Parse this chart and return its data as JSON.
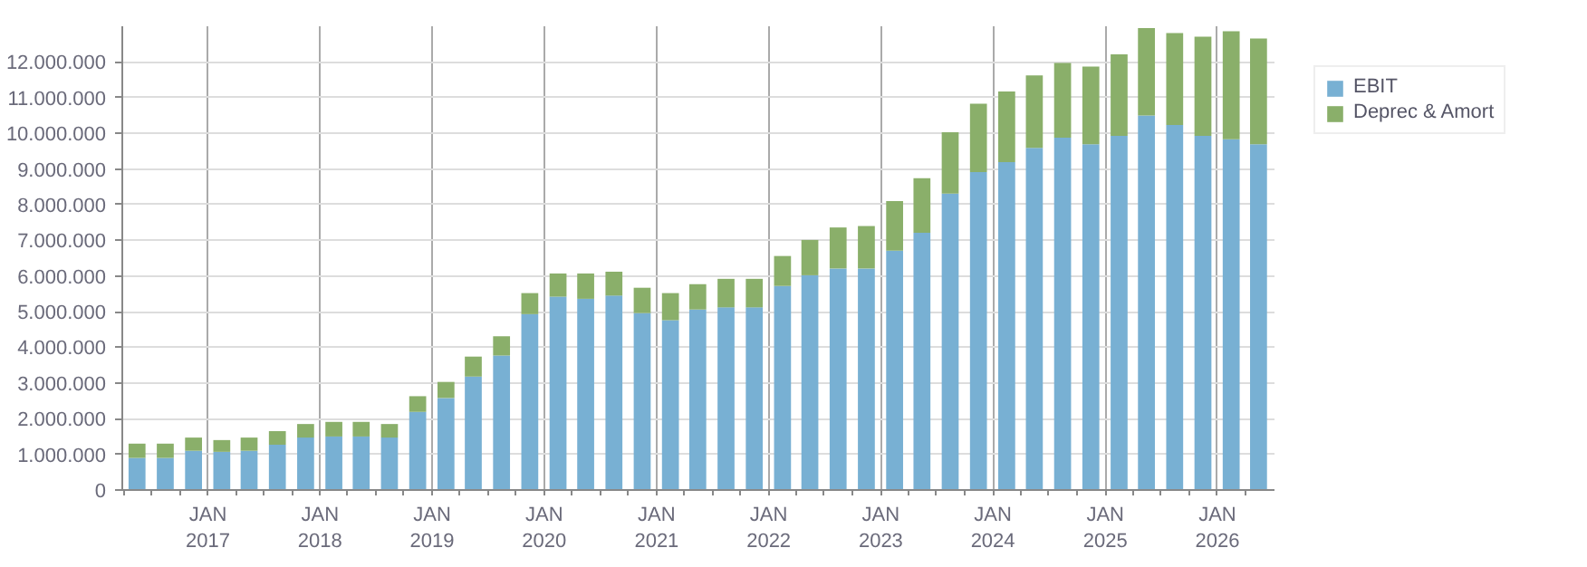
{
  "chart_data": {
    "type": "bar",
    "stacked": true,
    "x": [
      "2016-05-15",
      "2016-08-15",
      "2016-11-15",
      "2017-02-15",
      "2017-05-15",
      "2017-08-15",
      "2017-11-15",
      "2018-02-15",
      "2018-05-15",
      "2018-08-15",
      "2018-11-15",
      "2019-02-15",
      "2019-05-15",
      "2019-08-15",
      "2019-11-15",
      "2020-02-15",
      "2020-05-15",
      "2020-08-15",
      "2020-11-15",
      "2021-02-15",
      "2021-05-15",
      "2021-08-15",
      "2021-11-15",
      "2022-02-15",
      "2022-05-15",
      "2022-08-15",
      "2022-11-15",
      "2023-02-15",
      "2023-05-15",
      "2023-08-15",
      "2023-11-15",
      "2024-02-15",
      "2024-05-15",
      "2024-08-15",
      "2024-11-15",
      "2025-02-15",
      "2025-05-15",
      "2025-08-15",
      "2025-11-15",
      "2026-02-15",
      "2026-05-15"
    ],
    "series": [
      {
        "name": "EBIT",
        "color": "#78b0d3",
        "values": [
          900000,
          900000,
          1100000,
          1070000,
          1100000,
          1270000,
          1470000,
          1500000,
          1500000,
          1470000,
          2190000,
          2580000,
          3180000,
          3770000,
          4930000,
          5420000,
          5360000,
          5450000,
          4960000,
          4760000,
          5060000,
          5120000,
          5120000,
          5720000,
          6020000,
          6210000,
          6210000,
          6710000,
          7210000,
          8310000,
          8910000,
          9190000,
          9590000,
          9880000,
          9690000,
          9930000,
          10500000,
          10230000,
          9930000,
          9830000,
          9690000
        ]
      },
      {
        "name": "Deprec & Amort",
        "color": "#8aaf6a",
        "values": [
          400000,
          400000,
          370000,
          330000,
          370000,
          380000,
          380000,
          410000,
          410000,
          380000,
          440000,
          450000,
          560000,
          540000,
          590000,
          650000,
          710000,
          670000,
          710000,
          760000,
          710000,
          800000,
          800000,
          840000,
          990000,
          1150000,
          1190000,
          1390000,
          1530000,
          1720000,
          1920000,
          1980000,
          2030000,
          2090000,
          2180000,
          2280000,
          2450000,
          2580000,
          2780000,
          3030000,
          2970000
        ]
      }
    ],
    "xlim": [
      "2016-03-28",
      "2026-07-06"
    ],
    "xticks": [
      {
        "value": "2016-04-01",
        "label": null
      },
      {
        "value": "2016-07-01",
        "label": null
      },
      {
        "value": "2016-10-01",
        "label": null
      },
      {
        "value": "2017-01-01",
        "label": "JAN\n2017"
      },
      {
        "value": "2017-04-01",
        "label": null
      },
      {
        "value": "2017-07-01",
        "label": null
      },
      {
        "value": "2017-10-01",
        "label": null
      },
      {
        "value": "2018-01-01",
        "label": "JAN\n2018"
      },
      {
        "value": "2018-04-01",
        "label": null
      },
      {
        "value": "2018-07-01",
        "label": null
      },
      {
        "value": "2018-10-01",
        "label": null
      },
      {
        "value": "2019-01-01",
        "label": "JAN\n2019"
      },
      {
        "value": "2019-04-01",
        "label": null
      },
      {
        "value": "2019-07-01",
        "label": null
      },
      {
        "value": "2019-10-01",
        "label": null
      },
      {
        "value": "2020-01-01",
        "label": "JAN\n2020"
      },
      {
        "value": "2020-04-01",
        "label": null
      },
      {
        "value": "2020-07-01",
        "label": null
      },
      {
        "value": "2020-10-01",
        "label": null
      },
      {
        "value": "2021-01-01",
        "label": "JAN\n2021"
      },
      {
        "value": "2021-04-01",
        "label": null
      },
      {
        "value": "2021-07-01",
        "label": null
      },
      {
        "value": "2021-10-01",
        "label": null
      },
      {
        "value": "2022-01-01",
        "label": "JAN\n2022"
      },
      {
        "value": "2022-04-01",
        "label": null
      },
      {
        "value": "2022-07-01",
        "label": null
      },
      {
        "value": "2022-10-01",
        "label": null
      },
      {
        "value": "2023-01-01",
        "label": "JAN\n2023"
      },
      {
        "value": "2023-04-01",
        "label": null
      },
      {
        "value": "2023-07-01",
        "label": null
      },
      {
        "value": "2023-10-01",
        "label": null
      },
      {
        "value": "2024-01-01",
        "label": "JAN\n2024"
      },
      {
        "value": "2024-04-01",
        "label": null
      },
      {
        "value": "2024-07-01",
        "label": null
      },
      {
        "value": "2024-10-01",
        "label": null
      },
      {
        "value": "2025-01-01",
        "label": "JAN\n2025"
      },
      {
        "value": "2025-04-01",
        "label": null
      },
      {
        "value": "2025-07-01",
        "label": null
      },
      {
        "value": "2025-10-01",
        "label": null
      },
      {
        "value": "2026-01-01",
        "label": "JAN\n2026"
      },
      {
        "value": "2026-04-01",
        "label": null
      }
    ],
    "ylim": [
      0,
      13000000
    ],
    "yticks": [
      0,
      {
        "value": 1000000,
        "label": "1.000.000"
      },
      {
        "value": 2000000,
        "label": "2.000.000"
      },
      {
        "value": 3000000,
        "label": "3.000.000"
      },
      {
        "value": 4000000,
        "label": "4.000.000"
      },
      {
        "value": 5000000,
        "label": "5.000.000"
      },
      {
        "value": 6000000,
        "label": "6.000.000"
      },
      {
        "value": 7000000,
        "label": "7.000.000"
      },
      {
        "value": 8000000,
        "label": "8.000.000"
      },
      {
        "value": 9000000,
        "label": "9.000.000"
      },
      {
        "value": 10000000,
        "label": "10.000.000"
      },
      {
        "value": 11000000,
        "label": "11.000.000"
      },
      {
        "value": 12000000,
        "label": "12.000.000"
      }
    ],
    "grid": true,
    "legend": "top right"
  }
}
